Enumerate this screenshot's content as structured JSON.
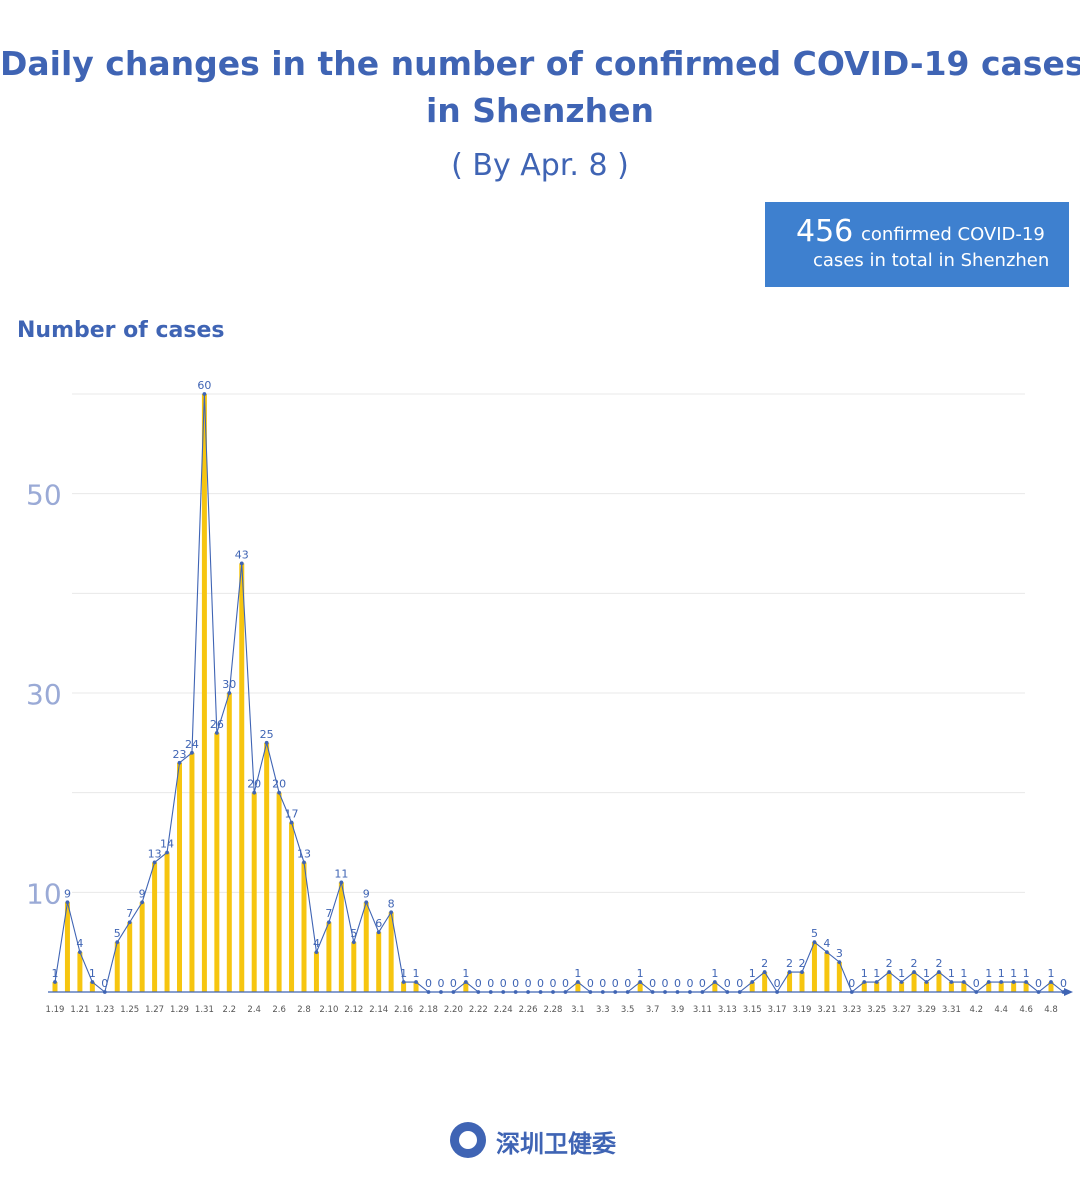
{
  "header": {
    "title_line1": "Daily changes in the number of confirmed COVID-19 cases",
    "title_line2": "in Shenzhen",
    "subtitle": "( By Apr. 8 )"
  },
  "total_box": {
    "number": "456",
    "line1": "confirmed COVID-19",
    "line2": "cases in total in Shenzhen"
  },
  "footer": {
    "text": "深圳卫健委",
    "logo_icon": "health-commission-seal-icon"
  },
  "colors": {
    "bar": "#f6c510",
    "line": "#3f64b4",
    "axis": "#3f64b4",
    "grid": "#e8e8e8",
    "ytick": "#9aaad6"
  },
  "chart_data": {
    "type": "bar",
    "title": "Daily changes in the number of confirmed COVID-19 cases in Shenzhen",
    "ylabel": "Number of cases",
    "xlabel": "",
    "ylim": [
      0,
      60
    ],
    "yticks": [
      10,
      30,
      50
    ],
    "grid": true,
    "overlay_line": true,
    "x_tick_labels": [
      "1.19",
      "1.21",
      "1.23",
      "1.25",
      "1.27",
      "1.29",
      "1.31",
      "2.2",
      "2.4",
      "2.6",
      "2.8",
      "2.10",
      "2.12",
      "2.14",
      "2.16",
      "2.18",
      "2.20",
      "2.22",
      "2.24",
      "2.26",
      "2.28",
      "3.1",
      "3.3",
      "3.5",
      "3.7",
      "3.9",
      "3.11",
      "3.13",
      "3.15",
      "3.17",
      "3.19",
      "3.21",
      "3.23",
      "3.25",
      "3.27",
      "3.29",
      "3.31",
      "4.2",
      "4.4",
      "4.6",
      "4.8"
    ],
    "values": [
      1,
      9,
      4,
      1,
      0,
      5,
      7,
      9,
      13,
      14,
      23,
      24,
      60,
      26,
      30,
      43,
      20,
      25,
      20,
      17,
      13,
      4,
      7,
      11,
      5,
      9,
      6,
      8,
      1,
      1,
      0,
      0,
      0,
      1,
      0,
      0,
      0,
      0,
      0,
      0,
      0,
      0,
      1,
      0,
      0,
      0,
      0,
      1,
      0,
      0,
      0,
      0,
      0,
      1,
      0,
      0,
      1,
      2,
      0,
      2,
      2,
      5,
      4,
      3,
      0,
      1,
      1,
      2,
      1,
      2,
      1,
      2,
      1,
      1,
      0,
      1,
      1,
      1,
      1,
      0,
      1,
      0
    ]
  }
}
